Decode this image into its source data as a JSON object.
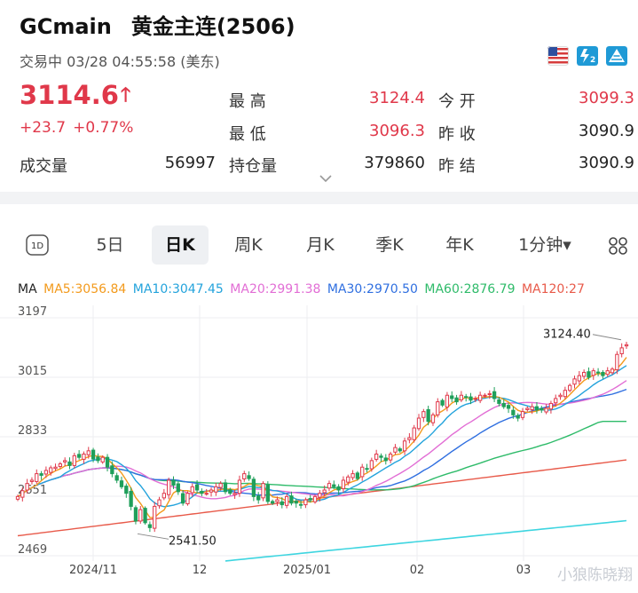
{
  "header": {
    "symbol": "GCmain",
    "name": "黄金主连(2506)",
    "status": "交易中 03/28 04:55:58 (美东)",
    "icons": [
      "us-flag-icon",
      "level2-icon",
      "pyramid-chart-icon"
    ]
  },
  "quote": {
    "price": "3114.6",
    "change": "+23.7",
    "change_pct": "+0.77%",
    "high_label": "最 高",
    "high": "3124.4",
    "low_label": "最 低",
    "low": "3096.3",
    "open_label": "今 开",
    "open": "3099.3",
    "prev_close_label": "昨 收",
    "prev_close": "3090.9",
    "volume_label": "成交量",
    "volume": "56997",
    "oi_label": "持仓量",
    "oi": "379860",
    "prev_settle_label": "昨 结",
    "prev_settle": "3090.9"
  },
  "tabs": [
    "5日",
    "日K",
    "周K",
    "月K",
    "季K",
    "年K",
    "1分钟▾"
  ],
  "active_tab": "日K",
  "ma": {
    "label": "MA",
    "ma5": "MA5:3056.84",
    "ma10": "MA10:3047.45",
    "ma20": "MA20:2991.38",
    "ma30": "MA30:2970.50",
    "ma60": "MA60:2876.79",
    "ma120": "MA120:27"
  },
  "colors": {
    "up": "#e0384a",
    "down": "#1f9f5a",
    "ma5": "#f39a1c",
    "ma10": "#23a3dc",
    "ma20": "#e26ed5",
    "ma30": "#2f6fe0",
    "ma60": "#2fbb6a",
    "ma120": "#e85a4a",
    "ma250": "#3ed5e0"
  },
  "chart_data": {
    "type": "candlestick",
    "y_ticks": [
      "3197",
      "3015",
      "2833",
      "2651",
      "2469"
    ],
    "ylim": [
      2469,
      3197
    ],
    "x_ticks": [
      "2024/11",
      "12",
      "2025/01",
      "02",
      "03"
    ],
    "annotations": {
      "high": "3124.40",
      "low": "2541.50"
    },
    "grid": true,
    "closes": [
      2650,
      2668,
      2690,
      2700,
      2720,
      2715,
      2730,
      2738,
      2740,
      2750,
      2760,
      2745,
      2775,
      2770,
      2780,
      2790,
      2765,
      2760,
      2770,
      2740,
      2720,
      2700,
      2680,
      2660,
      2620,
      2575,
      2610,
      2570,
      2555,
      2620,
      2640,
      2660,
      2700,
      2685,
      2665,
      2630,
      2660,
      2680,
      2670,
      2660,
      2660,
      2670,
      2680,
      2690,
      2665,
      2660,
      2660,
      2700,
      2720,
      2705,
      2650,
      2640,
      2690,
      2635,
      2630,
      2640,
      2625,
      2650,
      2630,
      2630,
      2625,
      2640,
      2640,
      2650,
      2660,
      2670,
      2690,
      2680,
      2670,
      2700,
      2710,
      2720,
      2705,
      2740,
      2735,
      2760,
      2780,
      2770,
      2760,
      2780,
      2800,
      2790,
      2820,
      2830,
      2860,
      2890,
      2910,
      2880,
      2900,
      2940,
      2930,
      2960,
      2950,
      2940,
      2960,
      2955,
      2945,
      2950,
      2960,
      2960,
      2965,
      2950,
      2935,
      2925,
      2920,
      2900,
      2890,
      2910,
      2920,
      2925,
      2915,
      2915,
      2920,
      2935,
      2950,
      2960,
      2975,
      2990,
      3010,
      3020,
      3030,
      3015,
      3035,
      3030,
      3020,
      3035,
      3040,
      3085,
      3105,
      3114.6
    ]
  },
  "watermark": "小狼陈晓翔"
}
